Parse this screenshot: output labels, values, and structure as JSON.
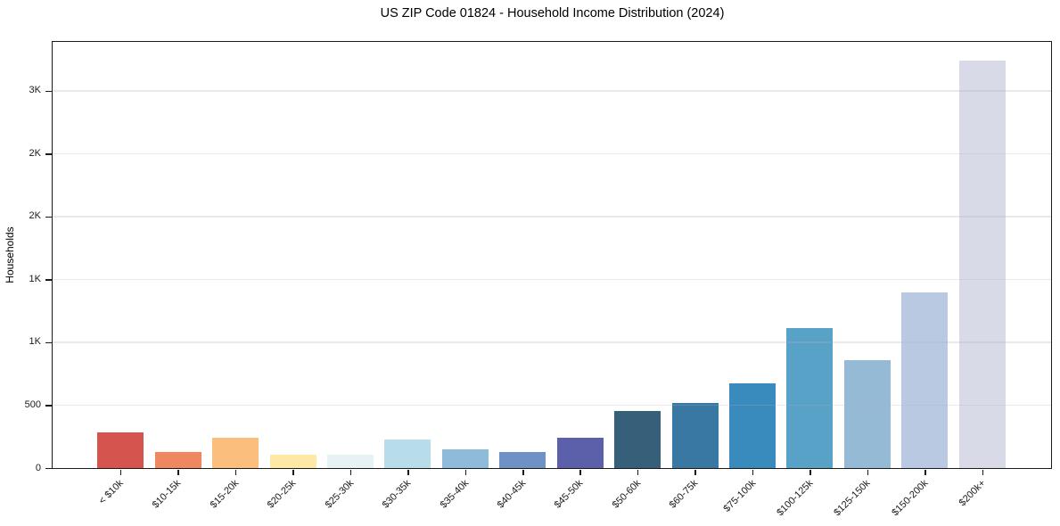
{
  "chart_data": {
    "type": "bar",
    "title": "US ZIP Code 01824 - Household Income Distribution (2024)",
    "xlabel": "",
    "ylabel": "Households",
    "categories": [
      "< $10k",
      "$10-15k",
      "$15-20k",
      "$20-25k",
      "$25-30k",
      "$30-35k",
      "$35-40k",
      "$40-45k",
      "$45-50k",
      "$50-60k",
      "$60-75k",
      "$75-100k",
      "$100-125k",
      "$125-150k",
      "$150-200k",
      "$200k+"
    ],
    "values": [
      285,
      130,
      240,
      110,
      105,
      225,
      150,
      130,
      240,
      455,
      515,
      675,
      1115,
      860,
      1400,
      3240
    ],
    "bar_colors": [
      "#d6544e",
      "#f0875e",
      "#fcbe7c",
      "#fde8a6",
      "#e6f2f3",
      "#b7dcea",
      "#8fbbdb",
      "#6e92c5",
      "#5c60aa",
      "#365f7a",
      "#3878a3",
      "#398bbd",
      "#58a2c8",
      "#94bad6",
      "#b9c9e1",
      "#d9dae7"
    ],
    "ylim": [
      0,
      3390
    ],
    "yticks": [
      {
        "value": 0,
        "label": "0"
      },
      {
        "value": 500,
        "label": "500"
      },
      {
        "value": 1000,
        "label": "1K"
      },
      {
        "value": 1500,
        "label": "1K"
      },
      {
        "value": 2000,
        "label": "2K"
      },
      {
        "value": 2500,
        "label": "2K"
      },
      {
        "value": 3000,
        "label": "3K"
      }
    ],
    "grid": true,
    "grid_axis": "y",
    "legend": "none",
    "background": "#ffffff"
  }
}
